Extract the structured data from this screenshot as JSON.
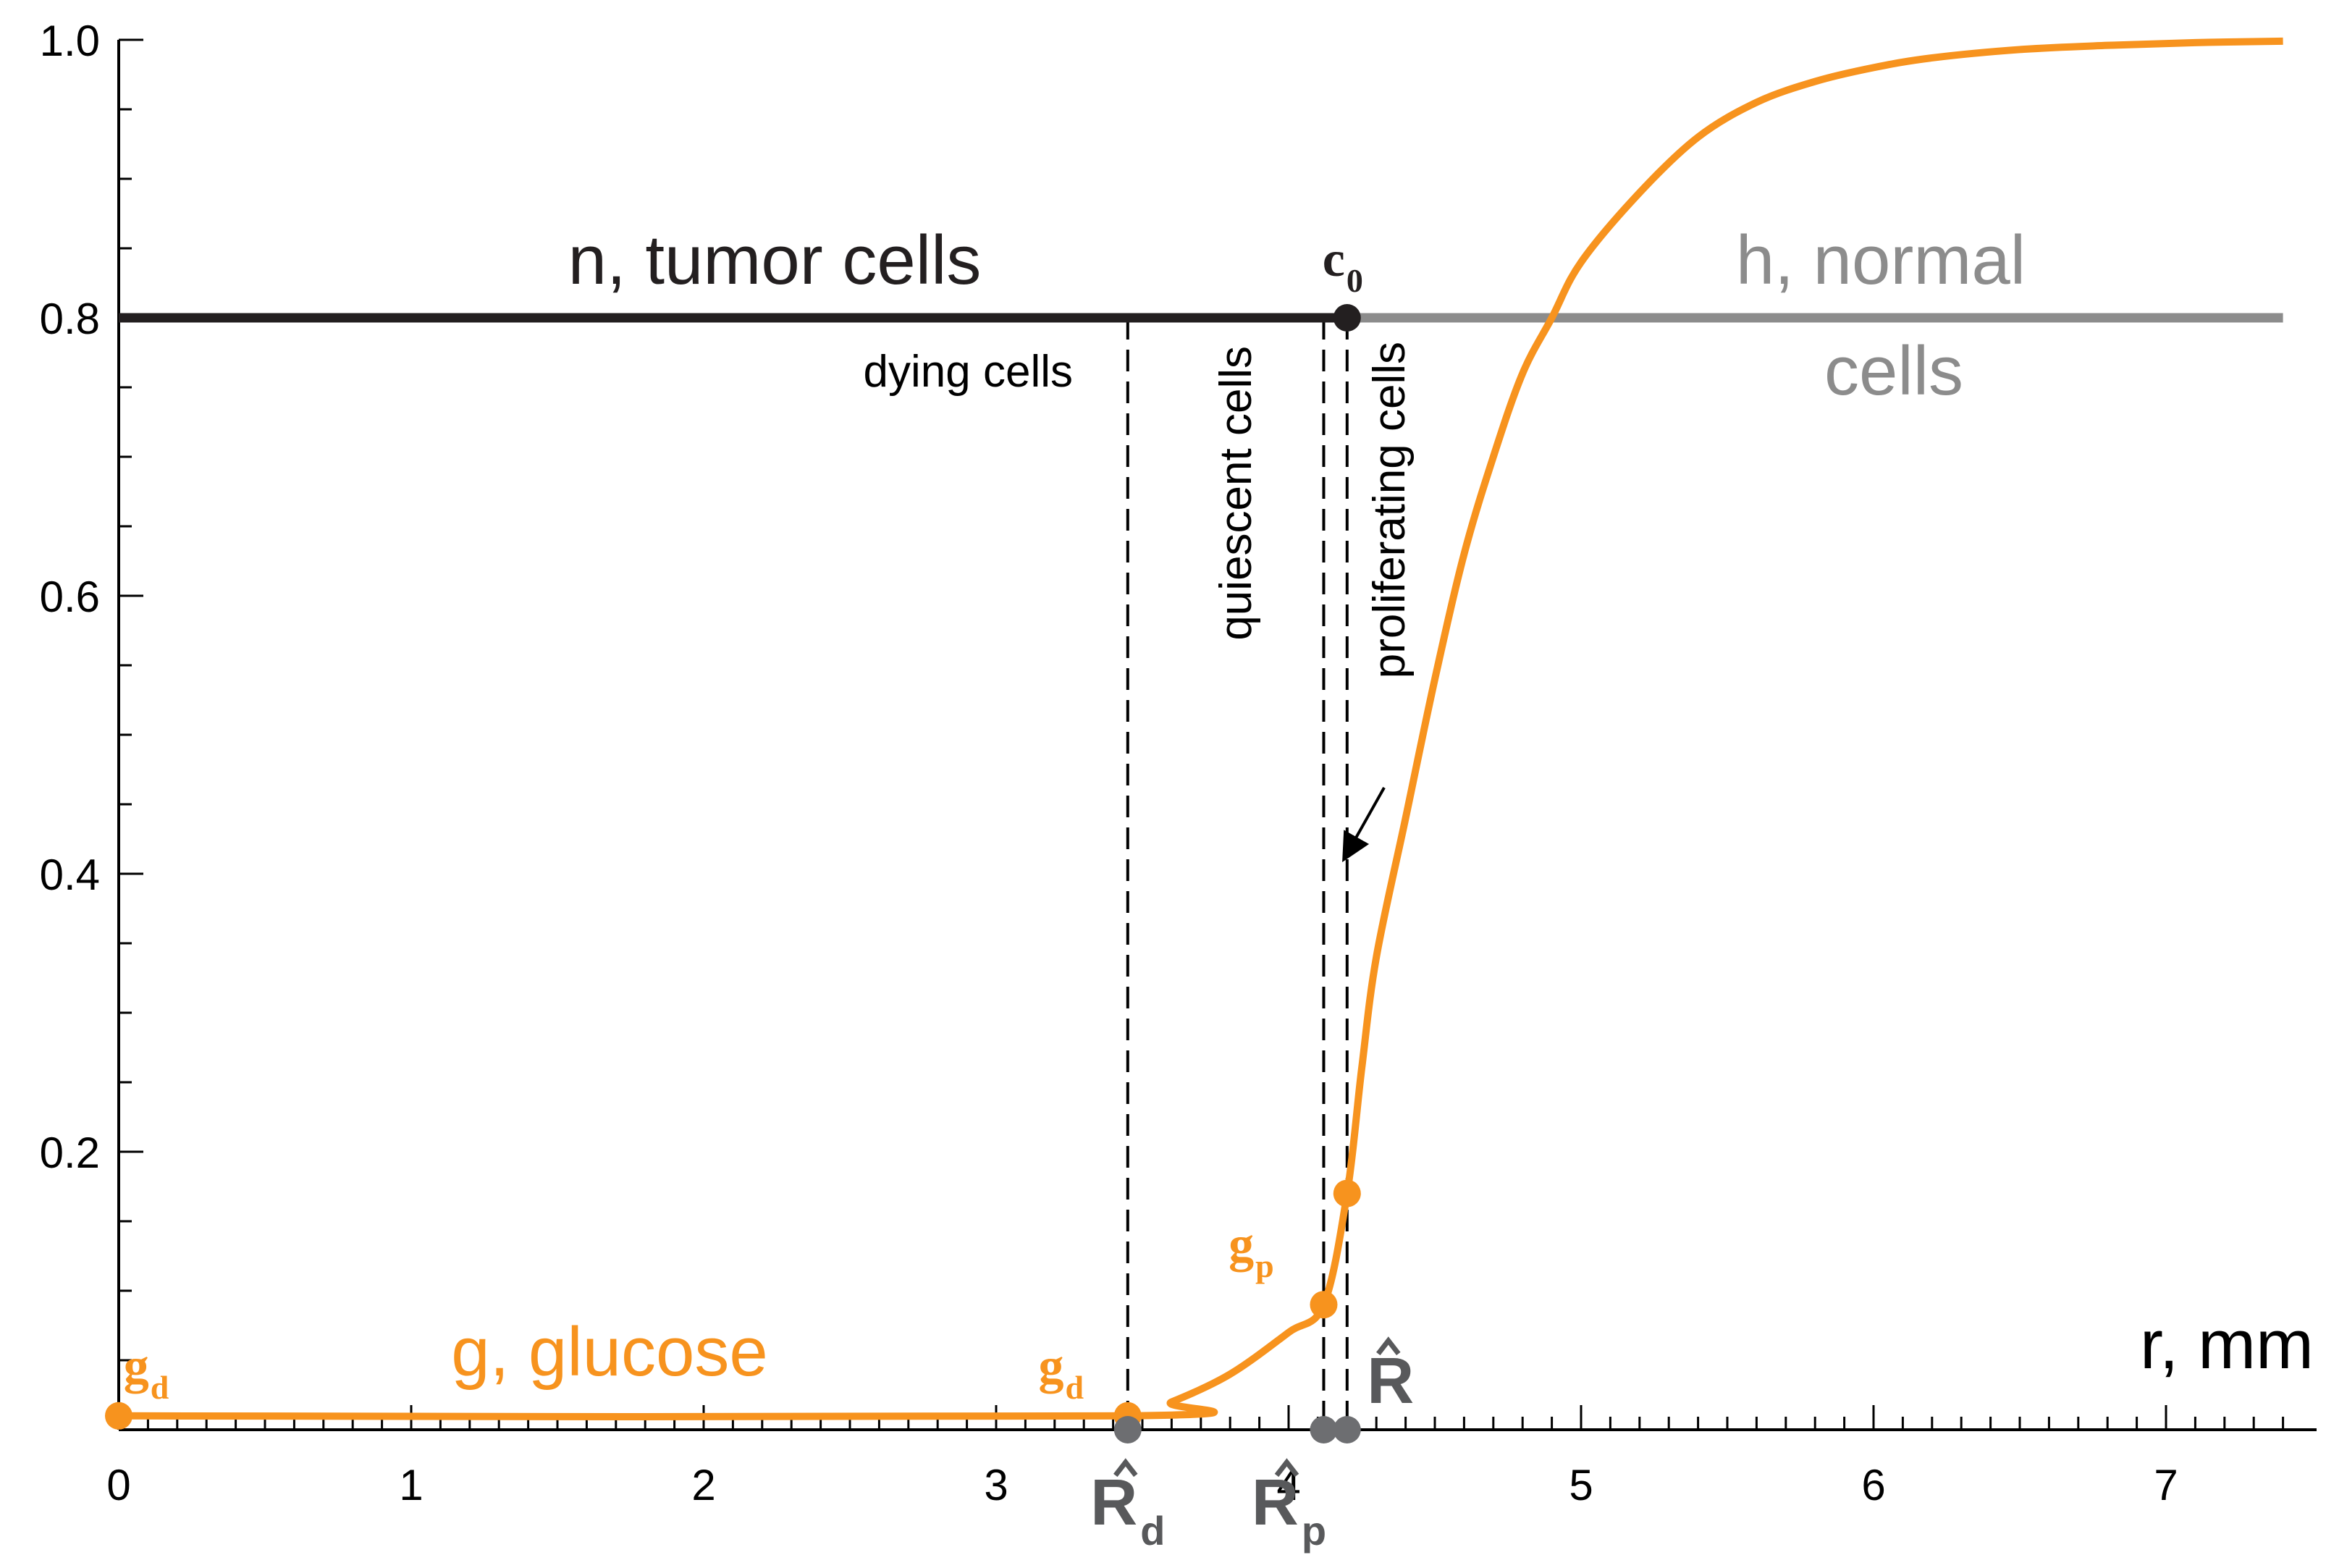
{
  "chart_data": {
    "type": "line",
    "title": "",
    "xlabel": "r, mm",
    "ylabel": "",
    "xlim": [
      0,
      7.4
    ],
    "ylim": [
      0,
      1.0
    ],
    "x_ticks": [
      "0",
      "1",
      "2",
      "3",
      "4",
      "5",
      "6",
      "7"
    ],
    "y_ticks": [
      "0.2",
      "0.4",
      "0.6",
      "0.8",
      "1.0"
    ],
    "grid": false,
    "series": [
      {
        "name": "n, tumor cells",
        "color": "#231f20",
        "x": [
          0,
          4.2
        ],
        "y": [
          0.8,
          0.8
        ]
      },
      {
        "name": "h, normal cells",
        "color": "#8c8c8c",
        "x": [
          4.2,
          7.4
        ],
        "y": [
          0.8,
          0.8
        ]
      },
      {
        "name": "g, glucose",
        "color": "#f7931e",
        "x": [
          0,
          3.45,
          3.6,
          3.8,
          4.0,
          4.12,
          4.2,
          4.25,
          4.3,
          4.4,
          4.5,
          4.6,
          4.7,
          4.8,
          4.9,
          5.0,
          5.2,
          5.4,
          5.6,
          5.8,
          6.0,
          6.2,
          6.5,
          6.8,
          7.1,
          7.4
        ],
        "y": [
          0.01,
          0.01,
          0.02,
          0.04,
          0.07,
          0.09,
          0.17,
          0.26,
          0.34,
          0.44,
          0.54,
          0.63,
          0.7,
          0.76,
          0.8,
          0.84,
          0.89,
          0.93,
          0.955,
          0.97,
          0.98,
          0.987,
          0.993,
          0.996,
          0.998,
          0.999
        ]
      }
    ],
    "markers": [
      {
        "label": "c",
        "sub": "0",
        "x": 4.2,
        "y": 0.8,
        "color": "#231f20"
      },
      {
        "label": "g",
        "sub": "d",
        "x": 0,
        "y": 0.01,
        "color": "#f7931e"
      },
      {
        "label": "g",
        "sub": "d",
        "x": 3.45,
        "y": 0.01,
        "color": "#f7931e"
      },
      {
        "label": "g",
        "sub": "p",
        "x": 4.12,
        "y": 0.09,
        "color": "#f7931e"
      },
      {
        "label": "",
        "sub": "",
        "x": 4.2,
        "y": 0.17,
        "color": "#f7931e"
      }
    ],
    "axis_points": [
      {
        "label": "R",
        "sub": "d",
        "x": 3.45
      },
      {
        "label": "R",
        "sub": "p",
        "x": 4.12
      },
      {
        "label": "R",
        "sub": "",
        "x": 4.2
      }
    ],
    "vertical_dashed_lines_x": [
      3.45,
      4.12,
      4.2
    ],
    "annotations": {
      "tumor": "n, tumor cells",
      "normal_1": "h, normal",
      "normal_2": "cells",
      "glucose": "g, glucose",
      "dying": "dying cells",
      "quiescent": "quiescent cells",
      "proliferating": "proliferating cells"
    }
  }
}
